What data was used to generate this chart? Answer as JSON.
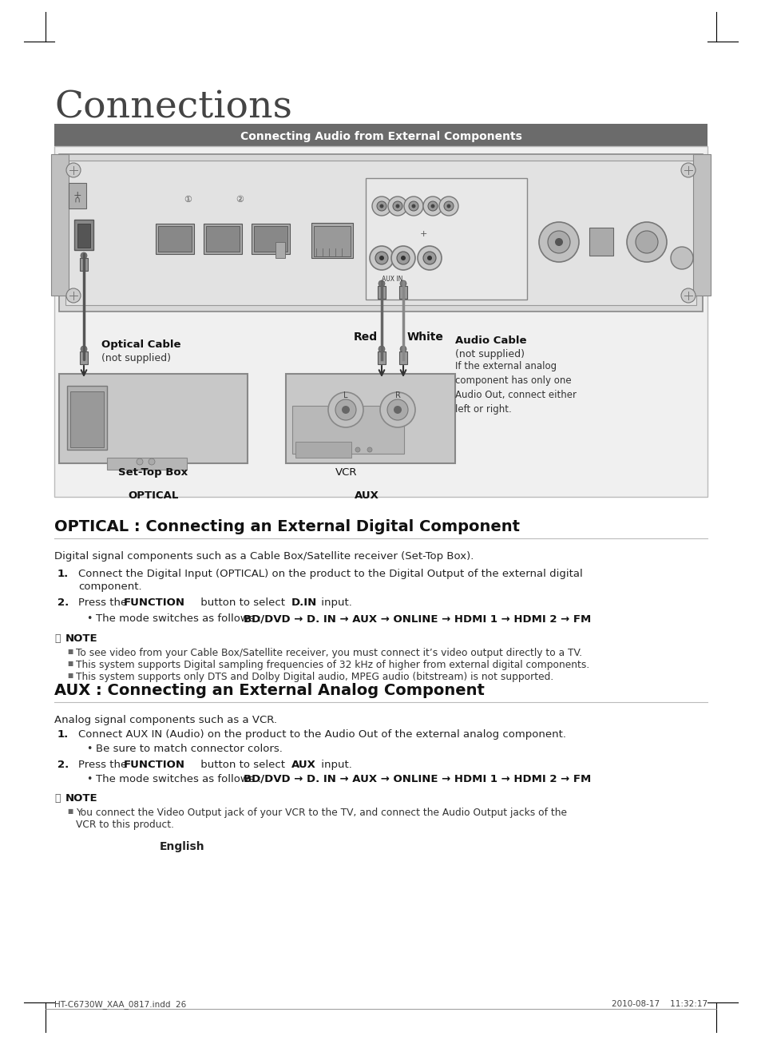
{
  "page_bg": "#ffffff",
  "title": "Connections",
  "header_bar_text": "Connecting Audio from External Components",
  "header_bar_color": "#6b6b6b",
  "header_bar_text_color": "#ffffff",
  "section1_title_bold": "OPTICAL : Connecting an ",
  "section1_title_rest": "External Digital Component",
  "section1_title_full": "OPTICAL : Connecting an External Digital Component",
  "section1_intro": "Digital signal components such as a Cable Box/Satellite receiver (Set-Top Box).",
  "section1_step1": "Connect the Digital Input (OPTICAL) on the product to the Digital Output of the external digital\n      component.",
  "section1_step2_bullet": "The mode switches as follows : ",
  "section1_bullet_bold": "BD/DVD → D. IN → AUX → ONLINE → HDMI 1 → HDMI 2 → FM",
  "section1_note1": "To see video from your Cable Box/Satellite receiver, you must connect it’s video output directly to a TV.",
  "section1_note2": "This system supports Digital sampling frequencies of 32 kHz of higher from external digital components.",
  "section1_note3": "This system supports only DTS and Dolby Digital audio, MPEG audio (bitstream) is not supported.",
  "section2_title_full": "AUX : Connecting an External Analog Component",
  "section2_intro": "Analog signal components such as a VCR.",
  "section2_step1": "Connect AUX IN (Audio) on the product to the Audio Out of the external analog component.",
  "section2_step1_bullet": "Be sure to match connector colors.",
  "section2_step2_bullet": "The mode switches as follows : ",
  "section2_bullet_bold": "BD/DVD → D. IN → AUX → ONLINE → HDMI 1 → HDMI 2 → FM",
  "section2_note1": "You connect the Video Output jack of your VCR to the TV, and connect the Audio Output jacks of the\n      VCR to this product.",
  "english_label": "English",
  "footer_left": "HT-C6730W_XAA_0817.indd  26",
  "footer_right": "2010-08-17    11:32:17",
  "optical_label": "OPTICAL",
  "aux_label": "AUX",
  "optical_cable_label1": "Optical Cable",
  "optical_cable_label2": "(not supplied)",
  "audio_cable_label1": "Audio Cable",
  "audio_cable_label2": "(not supplied)",
  "audio_cable_desc": "If the external analog\ncomponent has only one\nAudio Out, connect either\nleft or right.",
  "set_top_box_label": "Set-Top Box",
  "vcr_label": "VCR",
  "red_label": "Red",
  "white_label": "White",
  "note_label": "NOTE"
}
